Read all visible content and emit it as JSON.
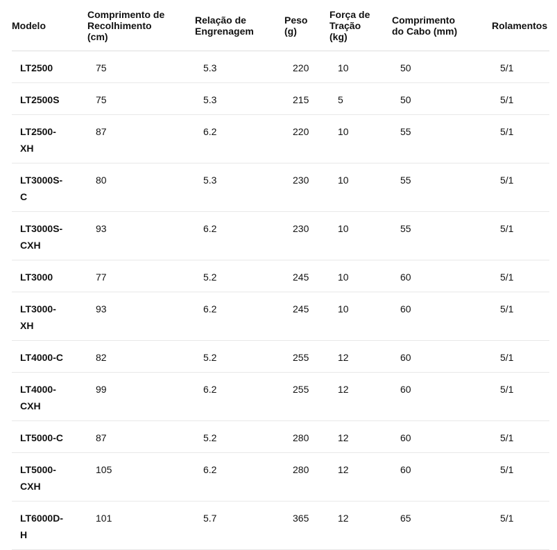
{
  "table": {
    "headers": [
      [
        "Modelo"
      ],
      [
        "Comprimento de",
        "Recolhimento",
        "(cm)"
      ],
      [
        "Relação de",
        "Engrenagem"
      ],
      [
        "Peso",
        "(g)"
      ],
      [
        "Força de",
        "Tração",
        "(kg)"
      ],
      [
        "Comprimento",
        "do Cabo (mm)"
      ],
      [
        "Rolamentos"
      ]
    ],
    "rows": [
      [
        "LT2500",
        "75",
        "5.3",
        "220",
        "10",
        "50",
        "5/1"
      ],
      [
        "LT2500S",
        "75",
        "5.3",
        "215",
        "5",
        "50",
        "5/1"
      ],
      [
        "LT2500-XH",
        "87",
        "6.2",
        "220",
        "10",
        "55",
        "5/1"
      ],
      [
        "LT3000S-C",
        "80",
        "5.3",
        "230",
        "10",
        "55",
        "5/1"
      ],
      [
        "LT3000S-CXH",
        "93",
        "6.2",
        "230",
        "10",
        "55",
        "5/1"
      ],
      [
        "LT3000",
        "77",
        "5.2",
        "245",
        "10",
        "60",
        "5/1"
      ],
      [
        "LT3000-XH",
        "93",
        "6.2",
        "245",
        "10",
        "60",
        "5/1"
      ],
      [
        "LT4000-C",
        "82",
        "5.2",
        "255",
        "12",
        "60",
        "5/1"
      ],
      [
        "LT4000-CXH",
        "99",
        "6.2",
        "255",
        "12",
        "60",
        "5/1"
      ],
      [
        "LT5000-C",
        "87",
        "5.2",
        "280",
        "12",
        "60",
        "5/1"
      ],
      [
        "LT5000-CXH",
        "105",
        "6.2",
        "280",
        "12",
        "60",
        "5/1"
      ],
      [
        "LT6000D-H",
        "101",
        "5.7",
        "365",
        "12",
        "65",
        "5/1"
      ]
    ]
  }
}
